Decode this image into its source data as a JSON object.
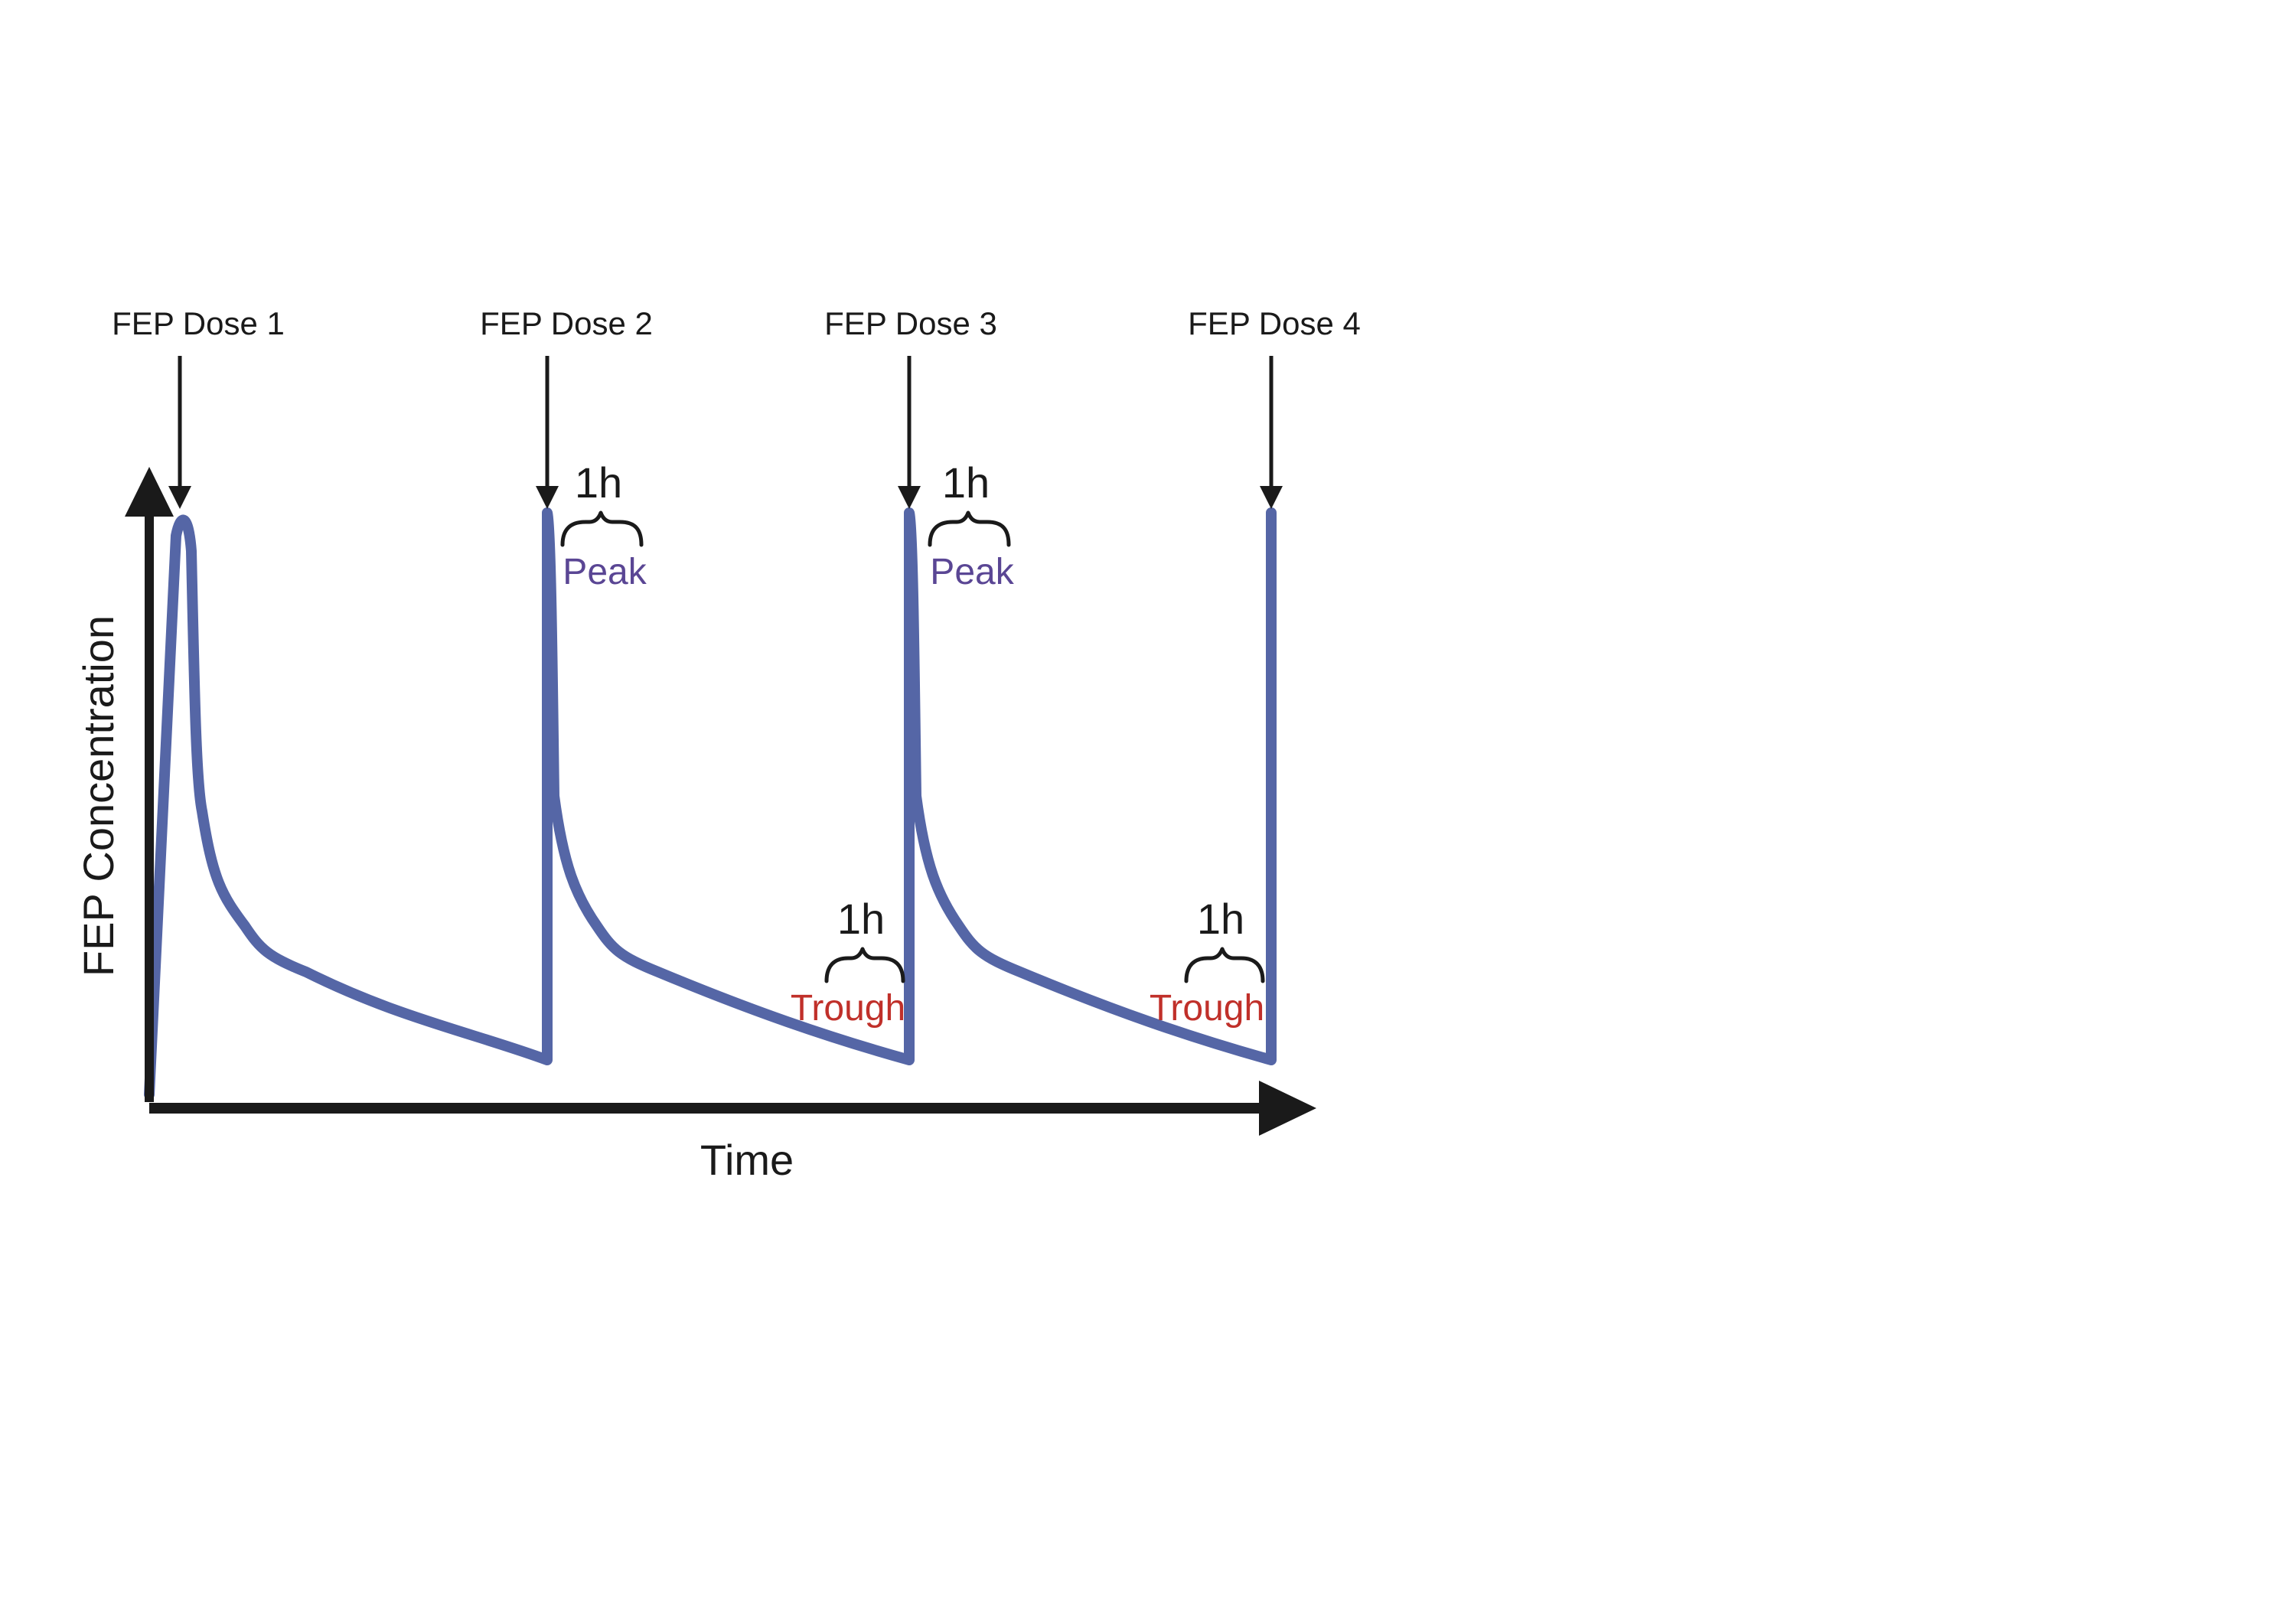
{
  "diagram": {
    "doses": [
      {
        "label": "FEP Dose 1"
      },
      {
        "label": "FEP Dose 2"
      },
      {
        "label": "FEP Dose 3"
      },
      {
        "label": "FEP Dose 4"
      }
    ],
    "peak_annotations": [
      {
        "interval": "1h",
        "label": "Peak"
      },
      {
        "interval": "1h",
        "label": "Peak"
      }
    ],
    "trough_annotations": [
      {
        "interval": "1h",
        "label": "Trough"
      },
      {
        "interval": "1h",
        "label": "Trough"
      }
    ],
    "y_axis_label": "FEP Concentration",
    "x_axis_label": "Time",
    "colors": {
      "curve": "#5566a6",
      "peak": "#5a4694",
      "trough": "#c0302a",
      "axes": "#1a1a1a"
    }
  }
}
